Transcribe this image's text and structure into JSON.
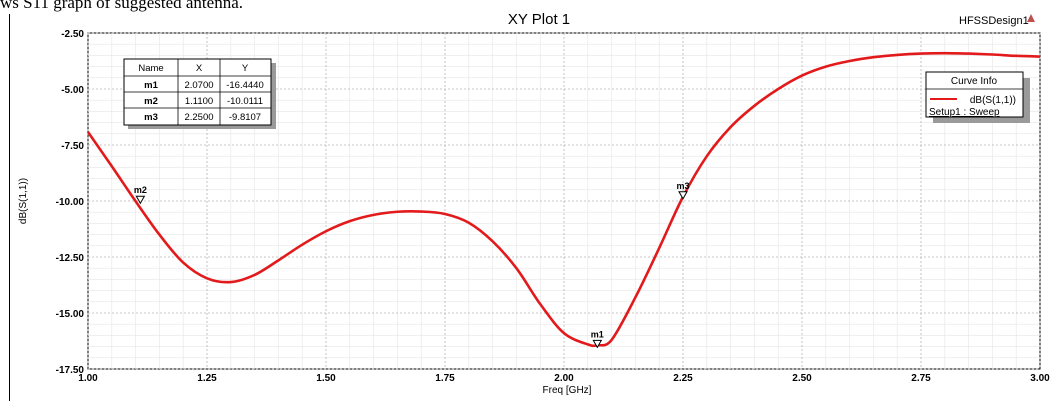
{
  "caption": "ws S11 graph of suggested antenna.",
  "plot_title": "XY Plot 1",
  "design_name": "HFSSDesign1",
  "chart_data": {
    "type": "line",
    "xlabel": "Freq [GHz]",
    "ylabel": "dB(S(1,1))",
    "xlim": [
      1.0,
      3.0
    ],
    "ylim": [
      -17.5,
      -2.5
    ],
    "x_ticks": [
      "1.00",
      "1.25",
      "1.50",
      "1.75",
      "2.00",
      "2.25",
      "2.50",
      "2.75",
      "3.00"
    ],
    "y_ticks": [
      "-2.50",
      "-5.00",
      "-7.50",
      "-10.00",
      "-12.50",
      "-15.00",
      "-17.50"
    ],
    "grid": true,
    "series": [
      {
        "name": "dB(S(1,1))",
        "color": "#e31a1c",
        "x": [
          1.0,
          1.05,
          1.1,
          1.15,
          1.2,
          1.25,
          1.3,
          1.35,
          1.4,
          1.45,
          1.5,
          1.55,
          1.6,
          1.65,
          1.7,
          1.75,
          1.8,
          1.85,
          1.9,
          1.95,
          2.0,
          2.05,
          2.07,
          2.1,
          2.15,
          2.2,
          2.25,
          2.3,
          2.35,
          2.4,
          2.45,
          2.5,
          2.55,
          2.6,
          2.65,
          2.7,
          2.75,
          2.8,
          2.85,
          2.9,
          2.95,
          3.0
        ],
        "y": [
          -6.92,
          -8.45,
          -10.01,
          -11.5,
          -12.75,
          -13.45,
          -13.62,
          -13.3,
          -12.65,
          -11.95,
          -11.35,
          -10.9,
          -10.62,
          -10.48,
          -10.47,
          -10.58,
          -10.97,
          -11.8,
          -13.0,
          -14.6,
          -15.9,
          -16.4,
          -16.44,
          -16.2,
          -14.3,
          -12.1,
          -9.81,
          -8.0,
          -6.7,
          -5.75,
          -5.0,
          -4.4,
          -4.0,
          -3.75,
          -3.58,
          -3.48,
          -3.42,
          -3.4,
          -3.42,
          -3.46,
          -3.52,
          -3.55
        ]
      }
    ],
    "markers": [
      {
        "name": "m1",
        "x": 2.07,
        "y": -16.444
      },
      {
        "name": "m2",
        "x": 1.11,
        "y": -10.0111
      },
      {
        "name": "m3",
        "x": 2.25,
        "y": -9.8107
      }
    ]
  },
  "marker_table": {
    "headers": [
      "Name",
      "X",
      "Y"
    ],
    "rows": [
      [
        "m1",
        "2.0700",
        "-16.4440"
      ],
      [
        "m2",
        "1.1100",
        "-10.0111"
      ],
      [
        "m3",
        "2.2500",
        "-9.8107"
      ]
    ]
  },
  "legend": {
    "title": "Curve Info",
    "entry_label": "dB(S(1,1))",
    "entry_sublabel": "Setup1 : Sweep"
  }
}
